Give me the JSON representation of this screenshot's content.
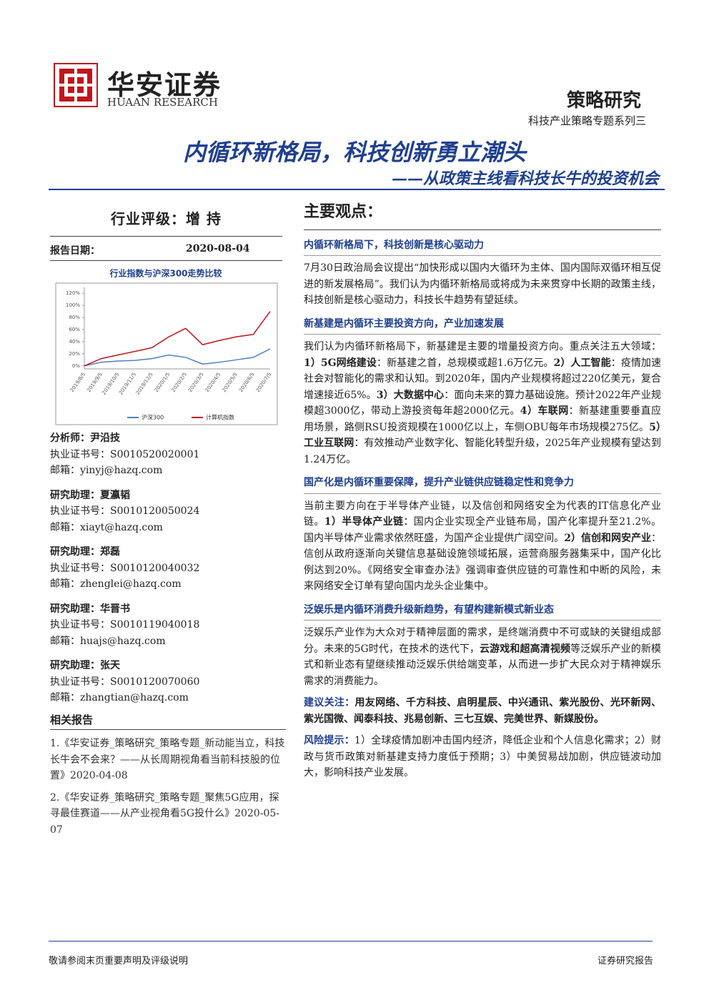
{
  "header": {
    "brand_cn": "华安证券",
    "brand_en": "HUAAN RESEARCH",
    "category": "策略研究",
    "series": "科技产业策略专题系列三",
    "title": "内循环新格局，科技创新勇立潮头",
    "subtitle": "——从政策主线看科技长牛的投资机会"
  },
  "sidebar": {
    "rating_label": "行业评级：",
    "rating": "增 持",
    "date_label": "报告日期：",
    "date": "2020-08-04",
    "analysts": [
      {
        "role": "分析师：",
        "name": "尹沿技",
        "cert_label": "执业证书号：",
        "cert": "S0010520020001",
        "email_label": "邮箱：",
        "email": "yinyj@hazq.com"
      },
      {
        "role": "研究助理：",
        "name": "夏瀛韬",
        "cert_label": "执业证书号：",
        "cert": "S0010120050024",
        "email_label": "邮箱：",
        "email": "xiayt@hazq.com"
      },
      {
        "role": "研究助理：",
        "name": "郑磊",
        "cert_label": "执业证书号：",
        "cert": "S0010120040032",
        "email_label": "邮箱：",
        "email": "zhenglei@hazq.com"
      },
      {
        "role": "研究助理：",
        "name": "华晋书",
        "cert_label": "执业证书号：",
        "cert": "S0010119040018",
        "email_label": "邮箱：",
        "email": "huajs@hazq.com"
      },
      {
        "role": "研究助理：",
        "name": "张天",
        "cert_label": "执业证书号：",
        "cert": "S0010120070060",
        "email_label": "邮箱：",
        "email": "zhangtian@hazq.com"
      }
    ],
    "related_title": "相关报告",
    "related": [
      "1.《华安证券_策略研究_策略专题_新动能当立，科技长牛会不会来？——从长周期视角看当前科技股的位置》2020-04-08",
      "2.《华安证券_策略研究_策略专题_聚焦5G应用，探寻最佳赛道——从产业视角看5G投什么》2020-05-07"
    ]
  },
  "chart_data": {
    "type": "line",
    "title": "行业指数与沪深300走势比较",
    "categories": [
      "2019/8/5",
      "2019/9/5",
      "2019/10/5",
      "2019/11/5",
      "2019/12/5",
      "2020/1/5",
      "2020/2/5",
      "2020/3/5",
      "2020/4/5",
      "2020/5/5",
      "2020/6/5",
      "2020/7/5"
    ],
    "series": [
      {
        "name": "沪深300",
        "color": "#4f7fbf",
        "values": [
          0,
          6,
          8,
          9,
          12,
          18,
          14,
          3,
          6,
          10,
          14,
          28
        ]
      },
      {
        "name": "计算机指数",
        "color": "#c0161b",
        "values": [
          0,
          12,
          18,
          24,
          30,
          48,
          62,
          35,
          42,
          48,
          52,
          90
        ]
      }
    ],
    "ylim": [
      -5,
      125
    ],
    "yticks": [
      {
        "value": 0,
        "label": "0%"
      },
      {
        "value": 20,
        "label": "20%"
      },
      {
        "value": 40,
        "label": "40%"
      },
      {
        "value": 60,
        "label": "60%"
      },
      {
        "value": 80,
        "label": "80%"
      },
      {
        "value": 100,
        "label": "100%"
      },
      {
        "value": 120,
        "label": "120%"
      }
    ]
  },
  "main": {
    "heading": "主要观点：",
    "sections": [
      {
        "title": "内循环新格局下，科技创新是核心驱动力",
        "parts": [
          "7月30日政治局会议提出“加快形成以国内大循环为主体、国内国际双循环相互促进的新发展格局”。我们认为内循环新格局或将成为未来贯穿中长期的政策主线，科技创新是核心驱动力，科技长牛趋势有望延续。"
        ]
      },
      {
        "title": "新基建是内循环主要投资方向，产业加速发展",
        "parts": [
          "我们认为内循环新格局下，新基建是主要的增量投资方向。重点关注五大领域：",
          {
            "text": "1）5G网络建设",
            "bold": true
          },
          "：新基建之首，总规模或超1.6万亿元。",
          {
            "text": "2）人工智能",
            "bold": true
          },
          "：疫情加速社会对智能化的需求和认知。到2020年，国内产业规模将超过220亿美元，复合增速接近65%。",
          {
            "text": "3）大数据中心",
            "bold": true
          },
          "：面向未来的算力基础设施。预计2022年产业规模超3000亿，带动上游投资每年超2000亿元。",
          {
            "text": "4）车联网",
            "bold": true
          },
          "：新基建重要垂直应用场景，路侧RSU投资规模在1000亿以上，车侧OBU每年市场规模275亿。",
          {
            "text": "5）工业互联网",
            "bold": true
          },
          "：有效推动产业数字化、智能化转型升级，2025年产业规模有望达到1.24万亿。"
        ]
      },
      {
        "title": "国产化是内循环重要保障，提升产业链供应链稳定性和竞争力",
        "parts": [
          "当前主要方向在于半导体产业链，以及信创和网络安全为代表的IT信息化产业链。",
          {
            "text": "1）半导体产业链",
            "bold": true
          },
          "：国内企业实现全产业链布局，国产化率提升至21.2%。国内半导体产业需求依然旺盛，为国产企业提供广阔空间。",
          {
            "text": "2）信创和网安产业",
            "bold": true
          },
          "：信创从政府逐渐向关键信息基础设施领域拓展，运营商服务器集采中，国产化比例达到20%。《网络安全审查办法》强调审查供应链的可靠性和中断的风险，未来网络安全订单有望向国内龙头企业集中。"
        ]
      },
      {
        "title": "泛娱乐是内循环消费升级新趋势，有望构建新模式新业态",
        "parts": [
          "泛娱乐产业作为大众对于精神层面的需求，是终端消费中不可或缺的关键组成部分。未来的5G时代，在技术的迭代下，",
          {
            "text": "云游戏和超高清视频",
            "bold": true
          },
          "等泛娱乐产业的新模式和新业态有望继续推动泛娱乐供给端变革，从而进一步扩大民众对于精神娱乐需求的消费能力。"
        ]
      }
    ],
    "suggest_label": "建议关注：",
    "suggest": "用友网络、千方科技、启明星辰、中兴通讯、紫光股份、光环新网、紫光国微、闻泰科技、兆易创新、三七互娱、完美世界、新媒股份。",
    "risk_label": "风险提示：",
    "risk": "1）全球疫情加剧冲击国内经济，降低企业和个人信息化需求；2）财政与货币政策对新基建支持力度低于预期；3）中美贸易战加剧，供应链波动加大，影响科技产业发展。"
  },
  "footer": {
    "left": "敬请参阅末页重要声明及评级说明",
    "right": "证券研究报告"
  }
}
